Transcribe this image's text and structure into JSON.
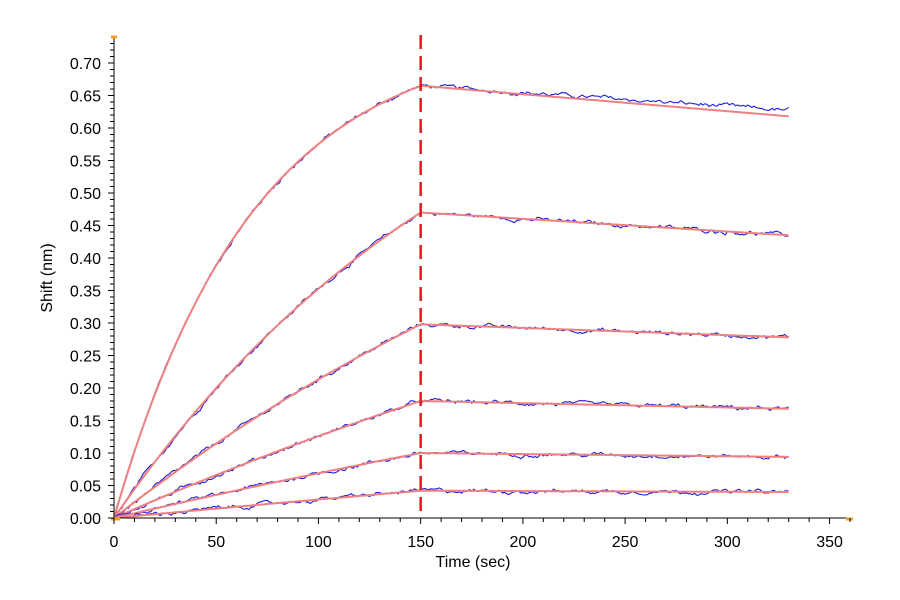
{
  "chart_data": {
    "type": "line",
    "title": "",
    "xlabel": "Time (sec)",
    "ylabel": "Shift (nm)",
    "xlim": [
      0,
      360
    ],
    "ylim": [
      0,
      0.74
    ],
    "x_ticks": [
      "0",
      "50",
      "100",
      "150",
      "200",
      "250",
      "300",
      "350"
    ],
    "y_ticks": [
      "0.00",
      "0.05",
      "0.10",
      "0.15",
      "0.20",
      "0.25",
      "0.30",
      "0.35",
      "0.40",
      "0.45",
      "0.50",
      "0.55",
      "0.60",
      "0.65",
      "0.70"
    ],
    "grid": false,
    "legend": "none",
    "dissociation_start_x": 150,
    "end_x": 330,
    "colors": {
      "raw": "#1f1fd6",
      "fit": "#f08080",
      "marker": "#d81e1e",
      "axis_accent": "#f0a020"
    },
    "series": [
      {
        "association_end_y": 0.665,
        "end_y": 0.618,
        "curvature": 2.2,
        "raw_end_y": 0.627
      },
      {
        "association_end_y": 0.47,
        "end_y": 0.435,
        "curvature": 0.8
      },
      {
        "association_end_y": 0.298,
        "end_y": 0.278,
        "curvature": 0.45
      },
      {
        "association_end_y": 0.18,
        "end_y": 0.168,
        "curvature": 0.3
      },
      {
        "association_end_y": 0.1,
        "end_y": 0.094,
        "curvature": 0.2
      },
      {
        "association_end_y": 0.042,
        "end_y": 0.04,
        "curvature": 0.1
      }
    ]
  }
}
